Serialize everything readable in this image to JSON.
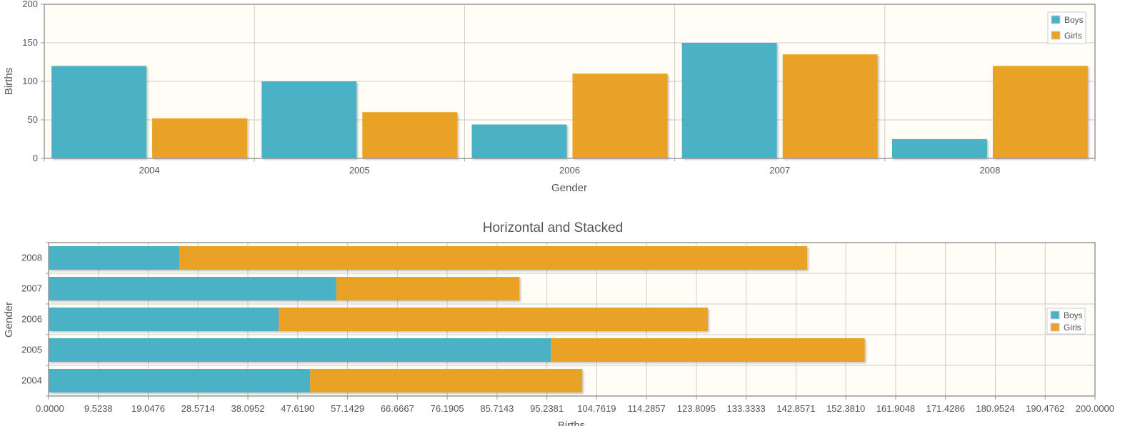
{
  "chart_data": [
    {
      "type": "bar",
      "orientation": "vertical",
      "title": "",
      "xlabel": "Gender",
      "ylabel": "Births",
      "categories": [
        "2004",
        "2005",
        "2006",
        "2007",
        "2008"
      ],
      "series": [
        {
          "name": "Boys",
          "values": [
            120,
            100,
            44,
            150,
            25
          ]
        },
        {
          "name": "Girls",
          "values": [
            52,
            60,
            110,
            135,
            120
          ]
        }
      ],
      "ylim": [
        0,
        200
      ],
      "yticks": [
        "0",
        "50",
        "100",
        "150",
        "200"
      ],
      "grid": true,
      "legend": "top-right"
    },
    {
      "type": "bar",
      "orientation": "horizontal",
      "stacked": true,
      "title": "Horizontal and Stacked",
      "xlabel": "Births",
      "ylabel": "Gender",
      "categories": [
        "2004",
        "2005",
        "2006",
        "2007",
        "2008"
      ],
      "series": [
        {
          "name": "Boys",
          "values": [
            50,
            96,
            44,
            55,
            25
          ]
        },
        {
          "name": "Girls",
          "values": [
            52,
            60,
            82,
            35,
            120
          ]
        }
      ],
      "xlim": [
        0,
        200
      ],
      "xticks": [
        "0.0000",
        "9.5238",
        "19.0476",
        "28.5714",
        "38.0952",
        "47.6190",
        "57.1429",
        "66.6667",
        "76.1905",
        "85.7143",
        "95.2381",
        "104.7619",
        "114.2857",
        "123.8095",
        "133.3333",
        "142.8571",
        "152.3810",
        "161.9048",
        "171.4286",
        "180.9524",
        "190.4762",
        "200.0000"
      ],
      "grid": true,
      "legend": "right"
    }
  ],
  "colors": {
    "boys": "#4bb2c5",
    "girls": "#eaa228",
    "plot_bg": "#fffdf6",
    "grid": "#cccccc",
    "border": "#999999",
    "text": "#555555"
  }
}
